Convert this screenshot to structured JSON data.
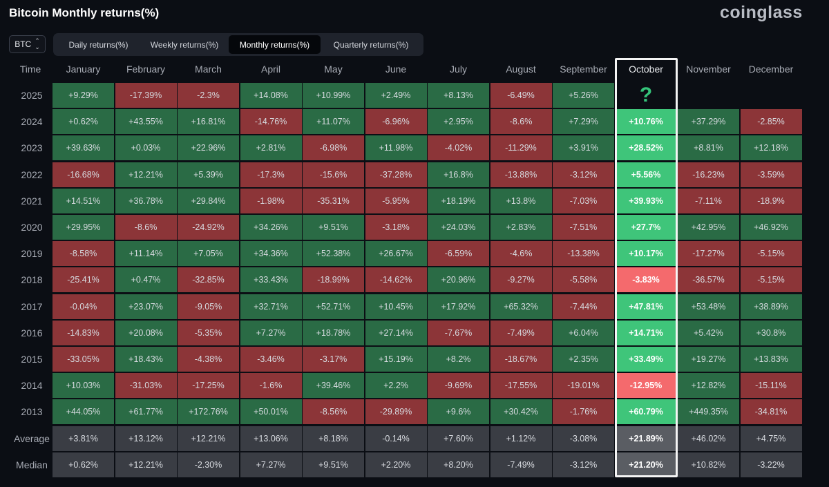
{
  "header": {
    "title": "Bitcoin Monthly returns(%)",
    "logo": "coinglass"
  },
  "asset_select": {
    "value": "BTC"
  },
  "tabs": [
    {
      "label": "Daily returns(%)",
      "active": false
    },
    {
      "label": "Weekly returns(%)",
      "active": false
    },
    {
      "label": "Monthly returns(%)",
      "active": true
    },
    {
      "label": "Quarterly returns(%)",
      "active": false
    }
  ],
  "highlight": {
    "month": "October",
    "missing_mark": "?"
  },
  "chart_data": {
    "type": "heatmap",
    "title": "Bitcoin Monthly returns(%)",
    "row_label": "Time",
    "columns": [
      "January",
      "February",
      "March",
      "April",
      "May",
      "June",
      "July",
      "August",
      "September",
      "October",
      "November",
      "December"
    ],
    "colors": {
      "positive": "#2a6b45",
      "negative": "#8c3538",
      "highlight_positive": "#3fc57a",
      "highlight_negative": "#f46a6d",
      "stat": "#3a3d44"
    },
    "rows": [
      {
        "label": "2025",
        "values": [
          "+9.29%",
          "-17.39%",
          "-2.3%",
          "+14.08%",
          "+10.99%",
          "+2.49%",
          "+8.13%",
          "-6.49%",
          "+5.26%",
          null,
          null,
          null
        ]
      },
      {
        "label": "2024",
        "values": [
          "+0.62%",
          "+43.55%",
          "+16.81%",
          "-14.76%",
          "+11.07%",
          "-6.96%",
          "+2.95%",
          "-8.6%",
          "+7.29%",
          "+10.76%",
          "+37.29%",
          "-2.85%"
        ]
      },
      {
        "label": "2023",
        "values": [
          "+39.63%",
          "+0.03%",
          "+22.96%",
          "+2.81%",
          "-6.98%",
          "+11.98%",
          "-4.02%",
          "-11.29%",
          "+3.91%",
          "+28.52%",
          "+8.81%",
          "+12.18%"
        ]
      },
      {
        "label": "2022",
        "values": [
          "-16.68%",
          "+12.21%",
          "+5.39%",
          "-17.3%",
          "-15.6%",
          "-37.28%",
          "+16.8%",
          "-13.88%",
          "-3.12%",
          "+5.56%",
          "-16.23%",
          "-3.59%"
        ]
      },
      {
        "label": "2021",
        "values": [
          "+14.51%",
          "+36.78%",
          "+29.84%",
          "-1.98%",
          "-35.31%",
          "-5.95%",
          "+18.19%",
          "+13.8%",
          "-7.03%",
          "+39.93%",
          "-7.11%",
          "-18.9%"
        ]
      },
      {
        "label": "2020",
        "values": [
          "+29.95%",
          "-8.6%",
          "-24.92%",
          "+34.26%",
          "+9.51%",
          "-3.18%",
          "+24.03%",
          "+2.83%",
          "-7.51%",
          "+27.7%",
          "+42.95%",
          "+46.92%"
        ]
      },
      {
        "label": "2019",
        "values": [
          "-8.58%",
          "+11.14%",
          "+7.05%",
          "+34.36%",
          "+52.38%",
          "+26.67%",
          "-6.59%",
          "-4.6%",
          "-13.38%",
          "+10.17%",
          "-17.27%",
          "-5.15%"
        ]
      },
      {
        "label": "2018",
        "values": [
          "-25.41%",
          "+0.47%",
          "-32.85%",
          "+33.43%",
          "-18.99%",
          "-14.62%",
          "+20.96%",
          "-9.27%",
          "-5.58%",
          "-3.83%",
          "-36.57%",
          "-5.15%"
        ]
      },
      {
        "label": "2017",
        "values": [
          "-0.04%",
          "+23.07%",
          "-9.05%",
          "+32.71%",
          "+52.71%",
          "+10.45%",
          "+17.92%",
          "+65.32%",
          "-7.44%",
          "+47.81%",
          "+53.48%",
          "+38.89%"
        ]
      },
      {
        "label": "2016",
        "values": [
          "-14.83%",
          "+20.08%",
          "-5.35%",
          "+7.27%",
          "+18.78%",
          "+27.14%",
          "-7.67%",
          "-7.49%",
          "+6.04%",
          "+14.71%",
          "+5.42%",
          "+30.8%"
        ]
      },
      {
        "label": "2015",
        "values": [
          "-33.05%",
          "+18.43%",
          "-4.38%",
          "-3.46%",
          "-3.17%",
          "+15.19%",
          "+8.2%",
          "-18.67%",
          "+2.35%",
          "+33.49%",
          "+19.27%",
          "+13.83%"
        ]
      },
      {
        "label": "2014",
        "values": [
          "+10.03%",
          "-31.03%",
          "-17.25%",
          "-1.6%",
          "+39.46%",
          "+2.2%",
          "-9.69%",
          "-17.55%",
          "-19.01%",
          "-12.95%",
          "+12.82%",
          "-15.11%"
        ]
      },
      {
        "label": "2013",
        "values": [
          "+44.05%",
          "+61.77%",
          "+172.76%",
          "+50.01%",
          "-8.56%",
          "-29.89%",
          "+9.6%",
          "+30.42%",
          "-1.76%",
          "+60.79%",
          "+449.35%",
          "-34.81%"
        ]
      }
    ],
    "summary_rows": [
      {
        "label": "Average",
        "values": [
          "+3.81%",
          "+13.12%",
          "+12.21%",
          "+13.06%",
          "+8.18%",
          "-0.14%",
          "+7.60%",
          "+1.12%",
          "-3.08%",
          "+21.89%",
          "+46.02%",
          "+4.75%"
        ]
      },
      {
        "label": "Median",
        "values": [
          "+0.62%",
          "+12.21%",
          "-2.30%",
          "+7.27%",
          "+9.51%",
          "+2.20%",
          "+8.20%",
          "-7.49%",
          "-3.12%",
          "+21.20%",
          "+10.82%",
          "-3.22%"
        ]
      }
    ]
  }
}
